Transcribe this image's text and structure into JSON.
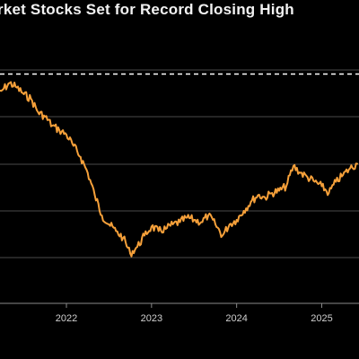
{
  "header": {
    "title": "rket Stocks Set for Record Closing High"
  },
  "chart_data": {
    "type": "line",
    "title": "rket Stocks Set for Record Closing High",
    "xlabel": "",
    "ylabel": "",
    "x_tick_labels": [
      "2022",
      "2023",
      "2024",
      "2025"
    ],
    "x_range": [
      "2021-03",
      "2025-06"
    ],
    "y_range": [
      0,
      100
    ],
    "grid": "horizontal",
    "record_level_line": {
      "value": 81,
      "style": "dashed"
    },
    "series": [
      {
        "color": "#f5a03a",
        "points": [
          [
            "2021-03",
            70
          ],
          [
            "2021-04",
            74
          ],
          [
            "2021-05",
            77
          ],
          [
            "2021-06",
            75
          ],
          [
            "2021-07",
            72
          ],
          [
            "2021-08",
            70
          ],
          [
            "2021-09",
            64
          ],
          [
            "2021-10",
            62
          ],
          [
            "2021-11",
            58
          ],
          [
            "2021-12",
            56
          ],
          [
            "2022-01",
            54
          ],
          [
            "2022-02",
            49
          ],
          [
            "2022-03",
            44
          ],
          [
            "2022-04",
            37
          ],
          [
            "2022-05",
            27
          ],
          [
            "2022-06",
            18
          ],
          [
            "2022-07",
            14
          ],
          [
            "2022-08",
            11
          ],
          [
            "2022-09",
            8
          ],
          [
            "2022-10",
            1
          ],
          [
            "2022-11",
            4
          ],
          [
            "2022-12",
            9
          ],
          [
            "2023-01",
            13
          ],
          [
            "2023-02",
            11
          ],
          [
            "2023-03",
            12
          ],
          [
            "2023-04",
            14
          ],
          [
            "2023-05",
            15
          ],
          [
            "2023-06",
            17
          ],
          [
            "2023-07",
            16
          ],
          [
            "2023-08",
            15
          ],
          [
            "2023-09",
            18
          ],
          [
            "2023-10",
            14
          ],
          [
            "2023-11",
            9
          ],
          [
            "2023-12",
            14
          ],
          [
            "2024-01",
            16
          ],
          [
            "2024-02",
            20
          ],
          [
            "2024-03",
            24
          ],
          [
            "2024-04",
            27
          ],
          [
            "2024-05",
            26
          ],
          [
            "2024-06",
            28
          ],
          [
            "2024-07",
            29
          ],
          [
            "2024-08",
            31
          ],
          [
            "2024-09",
            40
          ],
          [
            "2024-10",
            37
          ],
          [
            "2024-11",
            35
          ],
          [
            "2024-12",
            33
          ],
          [
            "2025-01",
            31
          ],
          [
            "2025-02",
            28
          ],
          [
            "2025-03",
            33
          ],
          [
            "2025-04",
            36
          ],
          [
            "2025-05",
            39
          ],
          [
            "2025-06",
            41
          ]
        ]
      }
    ]
  },
  "colors": {
    "background": "#000000",
    "line": "#f5a03a",
    "grid": "#4a4a4a",
    "record_line": "#ffffff",
    "axis_text": "#cfcfcf"
  }
}
